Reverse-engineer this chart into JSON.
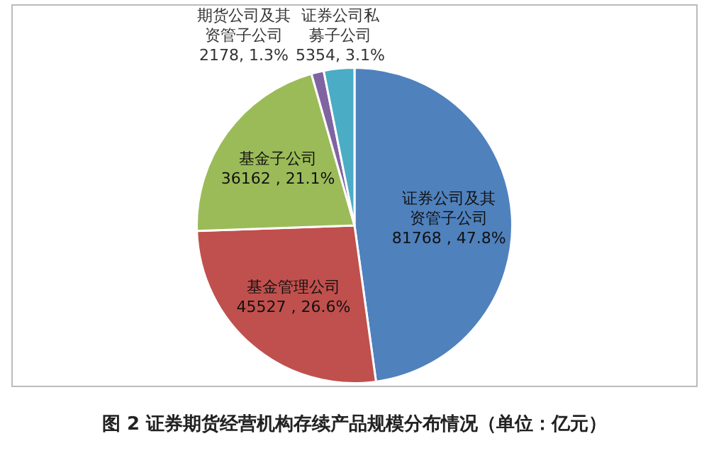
{
  "chart_data": {
    "type": "pie",
    "title": "图 2   证券期货经营机构存续产品规模分布情况（单位：亿元）",
    "categories": [
      "证券公司及其资管子公司",
      "基金管理公司",
      "基金子公司",
      "期货公司及其资管子公司",
      "证券公司私募子公司"
    ],
    "values": [
      81768,
      45527,
      36162,
      2178,
      5354
    ],
    "value_labels": [
      "81768 , 47.8%",
      "45527 , 26.6%",
      "36162 , 21.1%",
      "2178, 1.3%",
      "5354, 3.1%"
    ],
    "colors": [
      "#4f81bd",
      "#c0504d",
      "#9bbb59",
      "#8064a2",
      "#4bacc6"
    ],
    "legend": false
  }
}
